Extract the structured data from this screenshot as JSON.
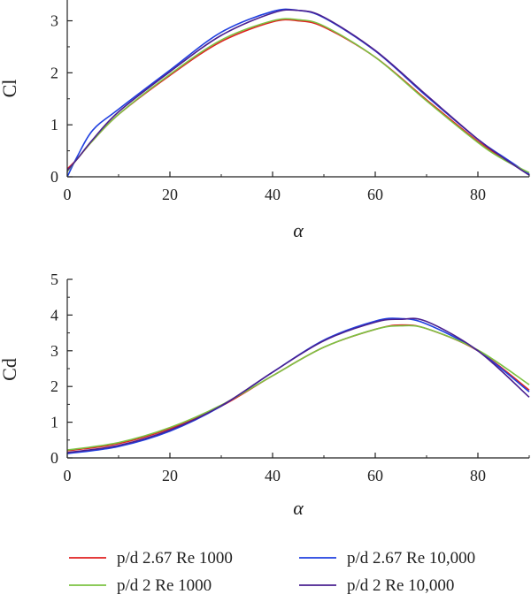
{
  "chart_data": [
    {
      "type": "line",
      "title": "",
      "xlabel": "α",
      "ylabel": "Cl",
      "xlim": [
        0,
        90
      ],
      "ylim": [
        0,
        3.4
      ],
      "xticks": [
        "0",
        "20",
        "40",
        "60",
        "80"
      ],
      "yticks": [
        "0",
        "1",
        "2",
        "3"
      ],
      "grid": false,
      "x": [
        0,
        2,
        5,
        10,
        20,
        30,
        40,
        45,
        50,
        60,
        70,
        80,
        85,
        90
      ],
      "series": [
        {
          "name": "p/d 2.67 Re 1000",
          "color": "#e02020",
          "values": [
            0.15,
            0.35,
            0.7,
            1.2,
            1.95,
            2.6,
            2.98,
            3.0,
            2.88,
            2.3,
            1.48,
            0.68,
            0.35,
            0.05
          ]
        },
        {
          "name": "p/d 2.67 Re 10,000",
          "color": "#2040e0",
          "values": [
            0.0,
            0.4,
            0.9,
            1.3,
            2.05,
            2.78,
            3.18,
            3.2,
            3.06,
            2.42,
            1.55,
            0.72,
            0.38,
            0.05
          ]
        },
        {
          "name": "p/d 2 Re 1000",
          "color": "#7cc242",
          "values": [
            0.1,
            0.35,
            0.7,
            1.2,
            1.97,
            2.63,
            3.0,
            3.02,
            2.9,
            2.3,
            1.46,
            0.66,
            0.33,
            0.08
          ]
        },
        {
          "name": "p/d 2 Re 10,000",
          "color": "#4a2090",
          "values": [
            0.12,
            0.35,
            0.72,
            1.25,
            2.02,
            2.72,
            3.15,
            3.2,
            3.07,
            2.43,
            1.57,
            0.72,
            0.36,
            0.03
          ]
        }
      ]
    },
    {
      "type": "line",
      "title": "",
      "xlabel": "α",
      "ylabel": "Cd",
      "xlim": [
        0,
        90
      ],
      "ylim": [
        0,
        5
      ],
      "xticks": [
        "0",
        "20",
        "40",
        "60",
        "80"
      ],
      "yticks": [
        "0",
        "1",
        "2",
        "3",
        "4",
        "5"
      ],
      "grid": false,
      "x": [
        0,
        10,
        20,
        30,
        40,
        50,
        60,
        65,
        70,
        80,
        90
      ],
      "series": [
        {
          "name": "p/d 2.67 Re 1000",
          "color": "#e02020",
          "values": [
            0.2,
            0.4,
            0.82,
            1.45,
            2.3,
            3.1,
            3.6,
            3.72,
            3.62,
            3.0,
            1.9
          ]
        },
        {
          "name": "p/d 2.67 Re 10,000",
          "color": "#2040e0",
          "values": [
            0.12,
            0.32,
            0.75,
            1.45,
            2.4,
            3.3,
            3.83,
            3.9,
            3.75,
            3.0,
            1.85
          ]
        },
        {
          "name": "p/d 2 Re 1000",
          "color": "#7cc242",
          "values": [
            0.22,
            0.43,
            0.85,
            1.48,
            2.3,
            3.1,
            3.6,
            3.7,
            3.62,
            3.02,
            2.05
          ]
        },
        {
          "name": "p/d 2 Re 10,000",
          "color": "#4a2090",
          "values": [
            0.15,
            0.35,
            0.78,
            1.46,
            2.4,
            3.28,
            3.8,
            3.88,
            3.82,
            3.0,
            1.7
          ]
        }
      ]
    }
  ],
  "legend": {
    "placement": "bottom",
    "items": [
      {
        "label": "p/d 2.67 Re 1000",
        "color": "#e02020"
      },
      {
        "label": "p/d 2.67 Re 10,000",
        "color": "#2040e0"
      },
      {
        "label": "p/d 2 Re 1000",
        "color": "#7cc242"
      },
      {
        "label": "p/d 2 Re 10,000",
        "color": "#4a2090"
      }
    ]
  }
}
